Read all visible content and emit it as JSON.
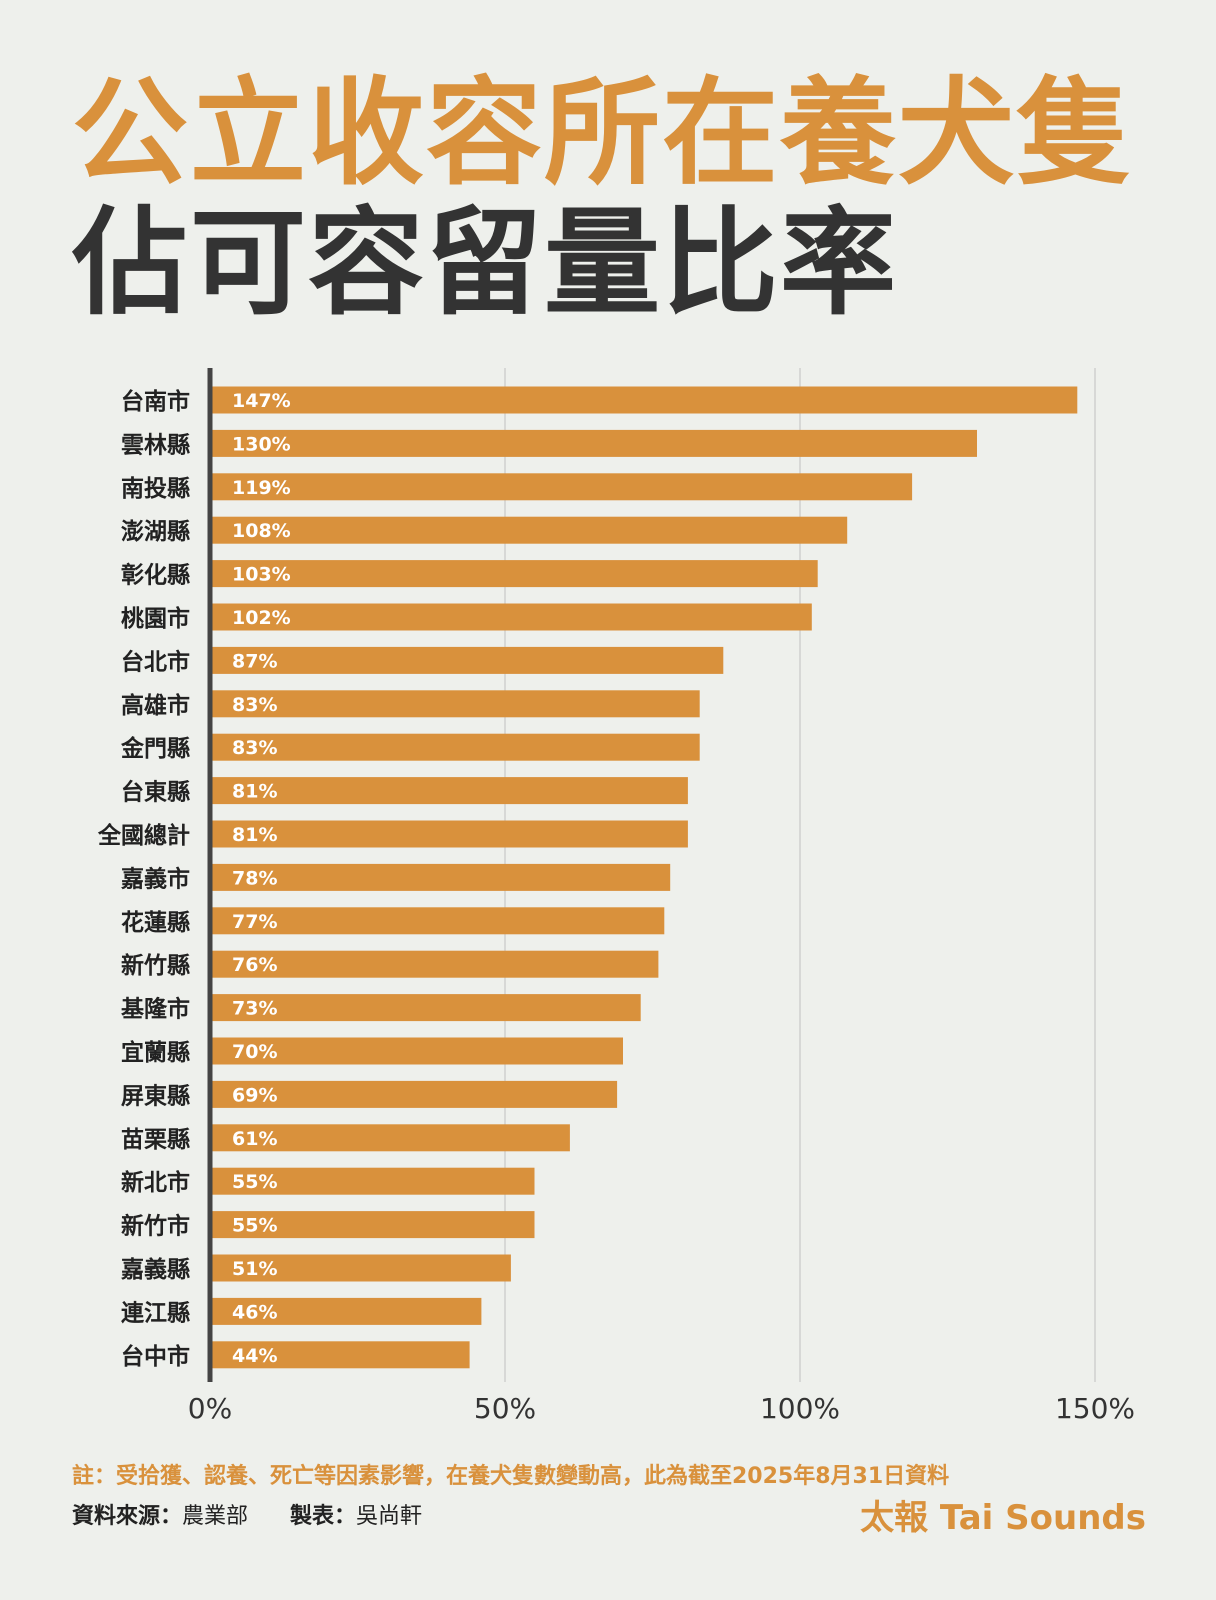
{
  "title": {
    "line1": "公立收容所在養犬隻",
    "line2": "佔可容留量比率"
  },
  "colors": {
    "accent": "#d9913c",
    "title_dark": "#333333",
    "bar_label": "#ffffff",
    "background": "#eef0ec",
    "gridline": "#c8c8c8",
    "axis": "#444444"
  },
  "chart_data": {
    "type": "bar",
    "orientation": "horizontal",
    "categories": [
      "台南市",
      "雲林縣",
      "南投縣",
      "澎湖縣",
      "彰化縣",
      "桃園市",
      "台北市",
      "高雄市",
      "金門縣",
      "台東縣",
      "全國總計",
      "嘉義市",
      "花蓮縣",
      "新竹縣",
      "基隆市",
      "宜蘭縣",
      "屏東縣",
      "苗栗縣",
      "新北市",
      "新竹市",
      "嘉義縣",
      "連江縣",
      "台中市"
    ],
    "values": [
      147,
      130,
      119,
      108,
      103,
      102,
      87,
      83,
      83,
      81,
      81,
      78,
      77,
      76,
      73,
      70,
      69,
      61,
      55,
      55,
      51,
      46,
      44
    ],
    "data_labels": [
      "147%",
      "130%",
      "119%",
      "108%",
      "103%",
      "102%",
      "87%",
      "83%",
      "83%",
      "81%",
      "81%",
      "78%",
      "77%",
      "76%",
      "73%",
      "70%",
      "69%",
      "61%",
      "55%",
      "55%",
      "51%",
      "46%",
      "44%"
    ],
    "x_ticks": [
      0,
      50,
      100,
      150
    ],
    "x_tick_labels": [
      "0%",
      "50%",
      "100%",
      "150%"
    ],
    "xlim": [
      0,
      150
    ],
    "grid": true,
    "legend": "none"
  },
  "footer": {
    "note": "註：受拾獲、認養、死亡等因素影響，在養犬隻數變動高，此為截至2025年8月31日資料",
    "source_key": "資料來源：",
    "source_value": "農業部",
    "author_key": "製表：",
    "author_value": "吳尚軒",
    "brand": "太報 Tai Sounds"
  }
}
